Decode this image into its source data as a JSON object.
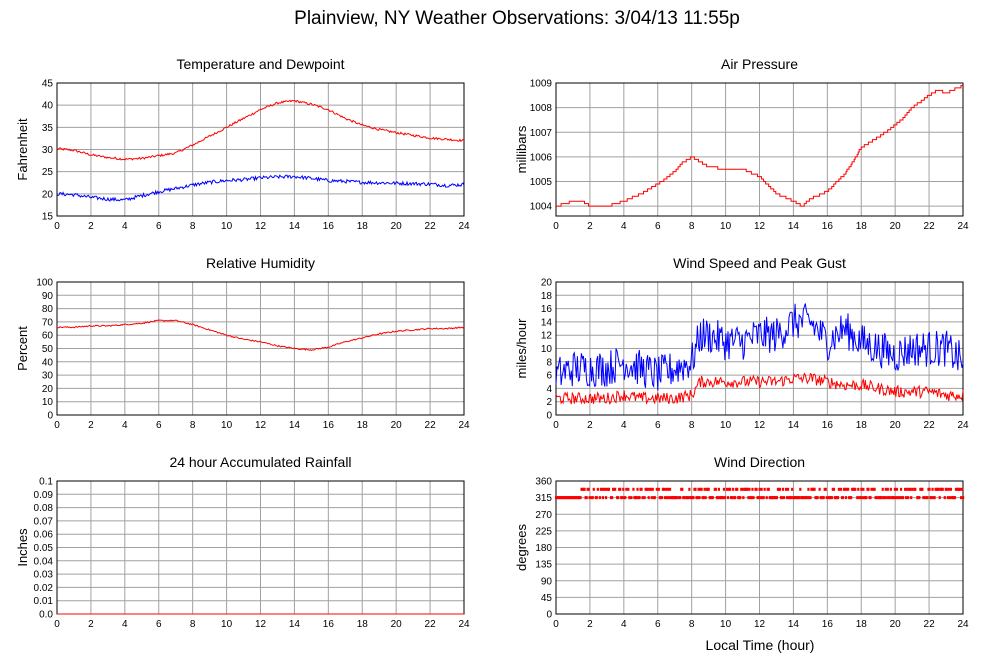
{
  "page": {
    "title": "Plainview, NY Weather Observations: 3/04/13 11:55p",
    "x_axis_label": "Local Time (hour)"
  },
  "colors": {
    "red": "#ff0000",
    "blue": "#0000ff",
    "grid": "#a0a0a0"
  },
  "chart_data": [
    {
      "id": "temp",
      "type": "line",
      "title": "Temperature and Dewpoint",
      "ylabel": "Fahrenheit",
      "xlabel": "",
      "xlim": [
        0,
        24
      ],
      "ylim": [
        15,
        45
      ],
      "xticks": [
        0,
        2,
        4,
        6,
        8,
        10,
        12,
        14,
        16,
        18,
        20,
        22,
        24
      ],
      "yticks": [
        15,
        20,
        25,
        30,
        35,
        40,
        45
      ],
      "grid": true,
      "series": [
        {
          "color": "#ff0000",
          "noise": 0.25,
          "x": [
            0,
            1,
            2,
            3,
            4,
            5,
            6,
            7,
            8,
            9,
            10,
            11,
            12,
            13,
            14,
            15,
            16,
            17,
            18,
            19,
            20,
            21,
            22,
            23,
            24
          ],
          "y": [
            30.2,
            29.8,
            28.8,
            28.2,
            27.8,
            28.0,
            28.6,
            29.2,
            31.0,
            33.0,
            35.0,
            37.0,
            39.0,
            40.5,
            41.0,
            40.2,
            39.0,
            37.0,
            35.5,
            34.5,
            33.8,
            33.2,
            32.6,
            32.3,
            32.0
          ]
        },
        {
          "color": "#0000ff",
          "noise": 0.4,
          "x": [
            0,
            1,
            2,
            3,
            4,
            5,
            6,
            7,
            8,
            9,
            10,
            11,
            12,
            13,
            14,
            15,
            16,
            17,
            18,
            19,
            20,
            21,
            22,
            23,
            24
          ],
          "y": [
            20.0,
            19.8,
            19.2,
            18.8,
            18.6,
            19.6,
            20.5,
            21.2,
            22.0,
            22.6,
            23.0,
            23.2,
            23.6,
            23.8,
            23.9,
            23.5,
            23.0,
            22.8,
            22.6,
            22.5,
            22.4,
            22.3,
            22.2,
            21.9,
            22.1
          ]
        }
      ]
    },
    {
      "id": "pressure",
      "type": "line",
      "title": "Air Pressure",
      "ylabel": "millibars",
      "xlabel": "",
      "xlim": [
        0,
        24
      ],
      "ylim": [
        1003.6,
        1009
      ],
      "ytick_min": 1004,
      "xticks": [
        0,
        2,
        4,
        6,
        8,
        10,
        12,
        14,
        16,
        18,
        20,
        22,
        24
      ],
      "yticks": [
        1004,
        1005,
        1006,
        1007,
        1008,
        1009
      ],
      "grid": true,
      "series": [
        {
          "color": "#ff0000",
          "step": 0.1,
          "x": [
            0,
            0.5,
            1,
            1.5,
            2,
            3,
            4,
            5,
            6,
            7,
            7.5,
            8,
            8.5,
            9,
            10,
            11,
            12,
            13,
            14,
            14.5,
            15,
            16,
            17,
            17.5,
            18,
            19,
            20,
            20.5,
            21,
            22,
            22.5,
            23,
            24
          ],
          "y": [
            1004.0,
            1004.1,
            1004.2,
            1004.2,
            1004.0,
            1004.0,
            1004.2,
            1004.5,
            1004.9,
            1005.4,
            1005.8,
            1006.0,
            1005.8,
            1005.6,
            1005.5,
            1005.5,
            1005.2,
            1004.5,
            1004.2,
            1004.0,
            1004.3,
            1004.6,
            1005.3,
            1005.8,
            1006.4,
            1006.8,
            1007.3,
            1007.6,
            1008.0,
            1008.5,
            1008.7,
            1008.6,
            1008.9
          ]
        }
      ]
    },
    {
      "id": "humidity",
      "type": "line",
      "title": "Relative Humidity",
      "ylabel": "Percent",
      "xlabel": "",
      "xlim": [
        0,
        24
      ],
      "ylim": [
        0,
        100
      ],
      "xticks": [
        0,
        2,
        4,
        6,
        8,
        10,
        12,
        14,
        16,
        18,
        20,
        22,
        24
      ],
      "yticks": [
        0,
        10,
        20,
        30,
        40,
        50,
        60,
        70,
        80,
        90,
        100
      ],
      "grid": true,
      "series": [
        {
          "color": "#ff0000",
          "noise": 0.5,
          "x": [
            0,
            1,
            2,
            3,
            4,
            5,
            6,
            7,
            8,
            9,
            10,
            11,
            12,
            13,
            14,
            15,
            16,
            17,
            18,
            19,
            20,
            21,
            22,
            23,
            24
          ],
          "y": [
            66,
            66,
            67,
            67,
            68,
            69,
            71,
            71,
            68,
            64,
            60,
            57,
            55,
            52,
            50,
            49,
            51,
            55,
            58,
            61,
            63,
            64,
            65,
            65,
            66
          ]
        }
      ]
    },
    {
      "id": "wind",
      "type": "line",
      "title": "Wind Speed and Peak Gust",
      "ylabel": "miles/hour",
      "xlabel": "",
      "xlim": [
        0,
        24
      ],
      "ylim": [
        0,
        20
      ],
      "xticks": [
        0,
        2,
        4,
        6,
        8,
        10,
        12,
        14,
        16,
        18,
        20,
        22,
        24
      ],
      "yticks": [
        0,
        2,
        4,
        6,
        8,
        10,
        12,
        14,
        16,
        18,
        20
      ],
      "grid": true,
      "series": [
        {
          "color": "#0000ff",
          "noise": 2.8,
          "x": [
            0,
            1,
            2,
            3,
            4,
            5,
            6,
            7,
            8,
            8.5,
            9,
            10,
            11,
            12,
            13,
            14,
            15,
            16,
            17,
            18,
            19,
            20,
            21,
            22,
            23,
            24
          ],
          "y": [
            6,
            7,
            7,
            7,
            8,
            7,
            6,
            7,
            8,
            12,
            12,
            11,
            11,
            12,
            12,
            14,
            14,
            11,
            13,
            11,
            10,
            9,
            10,
            10,
            10,
            8
          ]
        },
        {
          "color": "#ff0000",
          "noise": 0.9,
          "x": [
            0,
            1,
            2,
            3,
            4,
            5,
            6,
            7,
            8,
            8.5,
            9,
            10,
            11,
            12,
            13,
            14,
            15,
            16,
            17,
            18,
            19,
            20,
            21,
            22,
            23,
            24
          ],
          "y": [
            2.5,
            2.5,
            2.5,
            2.5,
            3,
            2.5,
            2.5,
            2.5,
            3,
            5,
            5,
            5,
            5,
            5,
            5,
            5.5,
            5.5,
            5,
            4.5,
            4.5,
            4,
            3.5,
            3.5,
            3.5,
            3,
            3
          ]
        }
      ]
    },
    {
      "id": "rain",
      "type": "line",
      "title": "24 hour Accumulated Rainfall",
      "ylabel": "Inches",
      "xlabel": "",
      "xlim": [
        0,
        24
      ],
      "ylim": [
        0,
        0.1
      ],
      "xticks": [
        0,
        2,
        4,
        6,
        8,
        10,
        12,
        14,
        16,
        18,
        20,
        22,
        24
      ],
      "yticks": [
        "0.0",
        "0.01",
        "0.02",
        "0.03",
        "0.04",
        "0.05",
        "0.06",
        "0.07",
        "0.08",
        "0.09",
        "0.1"
      ],
      "grid": true,
      "series": [
        {
          "color": "#ff0000",
          "x": [
            0,
            24
          ],
          "y": [
            0,
            0
          ]
        }
      ]
    },
    {
      "id": "direction",
      "type": "scatter",
      "title": "Wind Direction",
      "ylabel": "degrees",
      "xlabel": "Local Time (hour)",
      "xlim": [
        0,
        24
      ],
      "ylim": [
        0,
        360
      ],
      "xticks": [
        0,
        2,
        4,
        6,
        8,
        10,
        12,
        14,
        16,
        18,
        20,
        22,
        24
      ],
      "yticks": [
        0,
        45,
        90,
        135,
        180,
        225,
        270,
        315,
        360
      ],
      "grid": true,
      "series": [
        {
          "color": "#ff0000",
          "bands": [
            315,
            337.5
          ],
          "x": [
            0,
            24
          ]
        }
      ]
    }
  ]
}
